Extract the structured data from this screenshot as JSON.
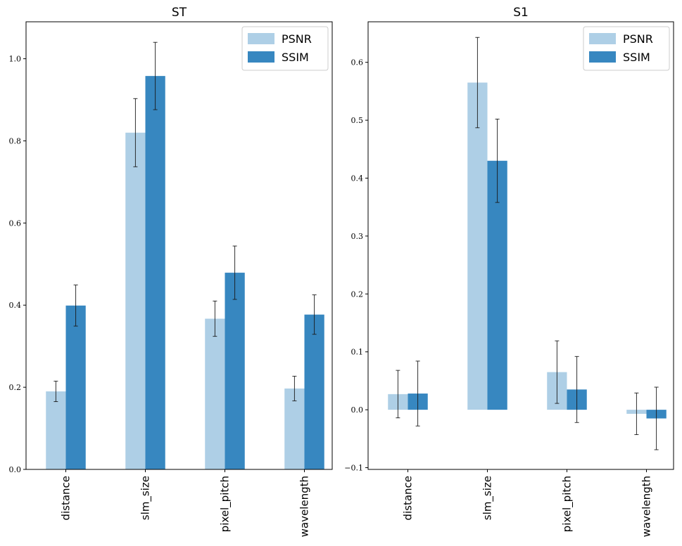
{
  "chart_data": [
    {
      "type": "bar",
      "title": "ST",
      "categories": [
        "distance",
        "slm_size",
        "pixel_pitch",
        "wavelength"
      ],
      "series": [
        {
          "name": "PSNR",
          "values": [
            0.19,
            0.82,
            0.367,
            0.197
          ],
          "errors": [
            0.025,
            0.083,
            0.043,
            0.03
          ],
          "color": "#aecfe6"
        },
        {
          "name": "SSIM",
          "values": [
            0.399,
            0.958,
            0.479,
            0.377
          ],
          "errors": [
            0.05,
            0.082,
            0.065,
            0.048
          ],
          "color": "#3787c0"
        }
      ],
      "ylim": [
        0.0,
        1.09
      ],
      "yticks": [
        0.0,
        0.2,
        0.4,
        0.6,
        0.8,
        1.0
      ],
      "ytick_labels": [
        "0.0",
        "0.2",
        "0.4",
        "0.6",
        "0.8",
        "1.0"
      ],
      "xlabel": "",
      "ylabel": "",
      "legend": "top-right"
    },
    {
      "type": "bar",
      "title": "S1",
      "categories": [
        "distance",
        "slm_size",
        "pixel_pitch",
        "wavelength"
      ],
      "series": [
        {
          "name": "PSNR",
          "values": [
            0.027,
            0.565,
            0.065,
            -0.007
          ],
          "errors": [
            0.041,
            0.078,
            0.054,
            0.036
          ],
          "color": "#aecfe6"
        },
        {
          "name": "SSIM",
          "values": [
            0.028,
            0.43,
            0.035,
            -0.015
          ],
          "errors": [
            0.056,
            0.072,
            0.057,
            0.054
          ],
          "color": "#3787c0"
        }
      ],
      "ylim": [
        -0.103,
        0.67
      ],
      "yticks": [
        -0.1,
        0.0,
        0.1,
        0.2,
        0.3,
        0.4,
        0.5,
        0.6
      ],
      "ytick_labels": [
        "−0.1",
        "0.0",
        "0.1",
        "0.2",
        "0.3",
        "0.4",
        "0.5",
        "0.6"
      ],
      "xlabel": "",
      "ylabel": "",
      "legend": "top-right"
    }
  ]
}
